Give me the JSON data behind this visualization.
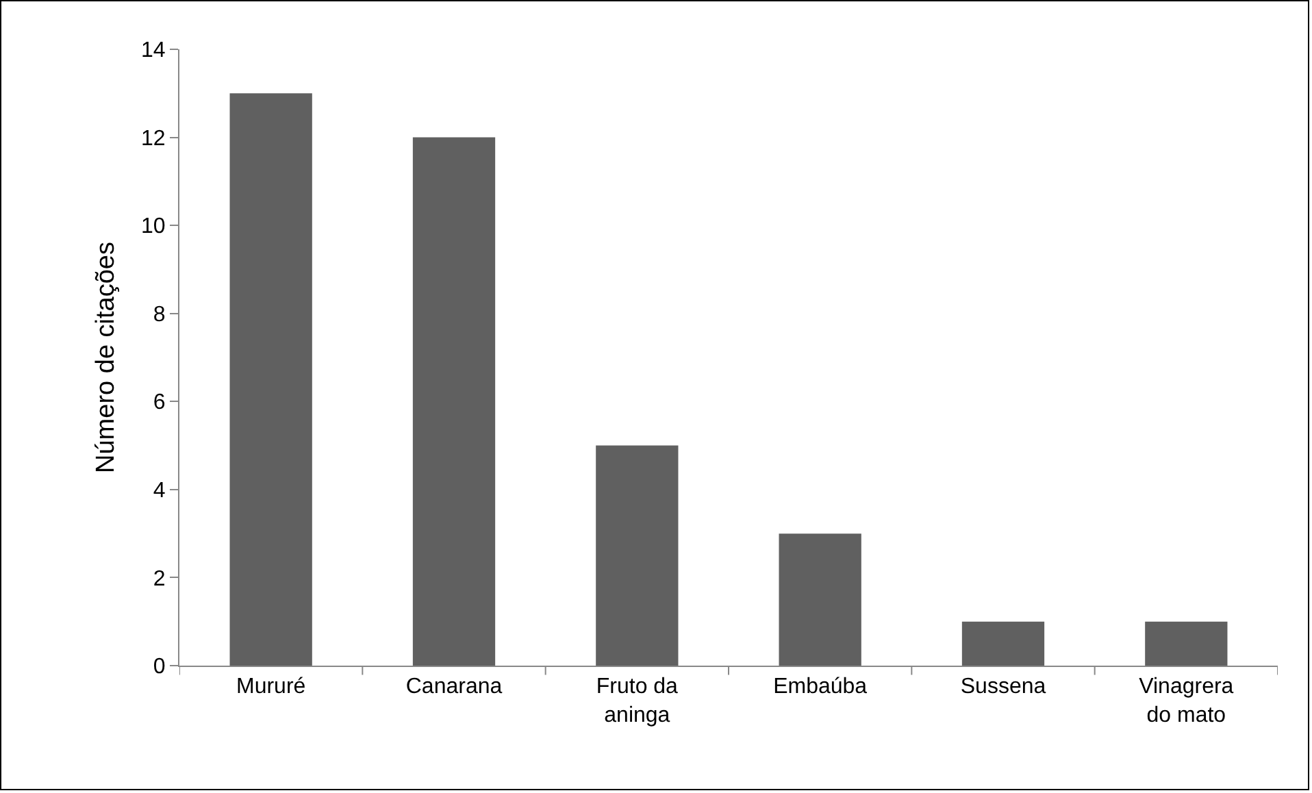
{
  "chart_data": {
    "type": "bar",
    "ylabel": "Número de citações",
    "categories": [
      "Mururé",
      "Canarana",
      "Fruto da aninga",
      "Embaúba",
      "Sussena",
      "Vinagrera do mato"
    ],
    "values": [
      13,
      12,
      5,
      3,
      1,
      1
    ],
    "color": "#606060",
    "ylim": [
      0,
      14
    ],
    "yticks": [
      0,
      2,
      4,
      6,
      8,
      10,
      12,
      14
    ],
    "grid": false
  }
}
